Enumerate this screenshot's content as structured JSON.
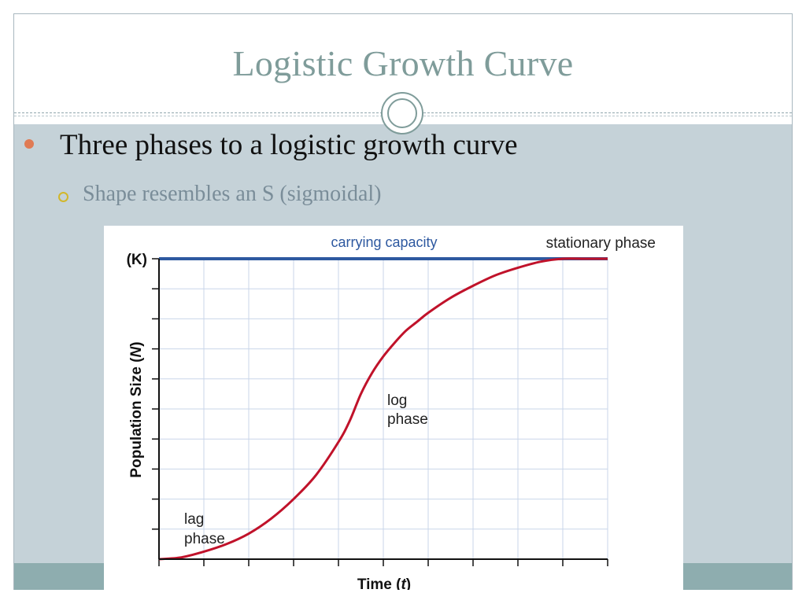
{
  "slide": {
    "title": "Logistic Growth Curve",
    "bullets": [
      {
        "text": "Three phases to a logistic growth curve",
        "level": 1
      },
      {
        "text": "Shape resembles an S (sigmoidal)",
        "level": 2
      }
    ]
  },
  "colors": {
    "title": "#7f9c9a",
    "bullet_dot": "#e07b54",
    "sub_bullet_ring": "#d2b72a",
    "background_panel": "#c5d2d8",
    "footer_band": "#8eadaf",
    "curve": "#c0122a",
    "capacity_line": "#2e59a0"
  },
  "icons": {
    "title_ornament": "double-circle-icon",
    "bullet_level_1": "filled-dot-bullet-icon",
    "bullet_level_2": "hollow-ring-bullet-icon"
  },
  "chart_data": {
    "type": "line",
    "title": "",
    "xlabel_prefix": "Time (",
    "xlabel_var": "t",
    "xlabel_suffix": ")",
    "ylabel_prefix": "Population Size (",
    "ylabel_var": "N",
    "ylabel_suffix": ")",
    "y_top_label": "(K)",
    "grid": true,
    "legend": "none",
    "xlim": [
      0,
      10
    ],
    "ylim": [
      0,
      1
    ],
    "series": [
      {
        "name": "",
        "x": [
          0,
          0.5,
          1,
          1.5,
          2,
          2.5,
          3,
          3.5,
          4,
          4.25,
          4.5,
          4.75,
          5,
          5.25,
          5.5,
          5.75,
          6,
          6.5,
          7,
          7.5,
          8,
          8.5,
          9,
          9.5,
          10
        ],
        "y": [
          0,
          0.006,
          0.025,
          0.05,
          0.085,
          0.135,
          0.2,
          0.28,
          0.39,
          0.46,
          0.55,
          0.62,
          0.675,
          0.72,
          0.76,
          0.79,
          0.82,
          0.87,
          0.91,
          0.945,
          0.97,
          0.99,
          1.0,
          1.0,
          1.0
        ]
      }
    ],
    "reference_lines": [
      {
        "label": "carrying capacity",
        "y": 1.0
      }
    ],
    "annotations": [
      {
        "text_line1": "lag",
        "text_line2": "phase"
      },
      {
        "text_line1": "log",
        "text_line2": "phase"
      },
      {
        "text_line1": "stationary phase",
        "text_line2": ""
      }
    ]
  }
}
